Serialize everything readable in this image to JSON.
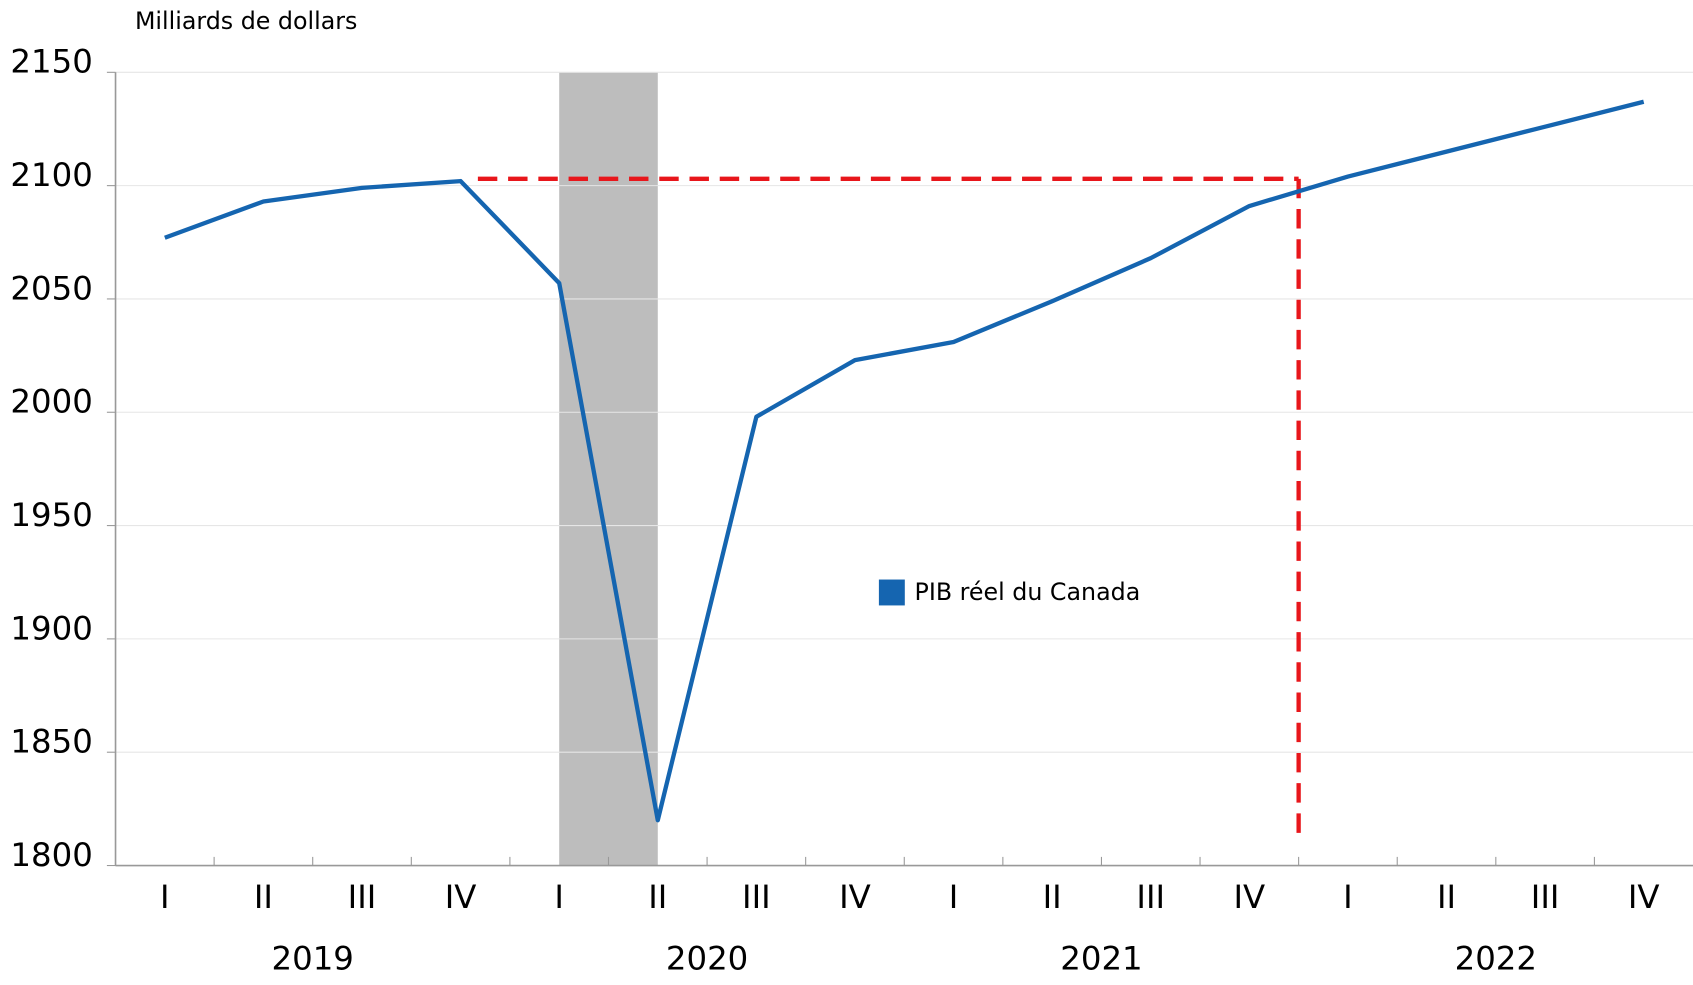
{
  "chart_data": {
    "type": "line",
    "y_axis_label": "Milliards de dollars",
    "categories": [
      "I",
      "II",
      "III",
      "IV",
      "I",
      "II",
      "III",
      "IV",
      "I",
      "II",
      "III",
      "IV",
      "I",
      "II",
      "III",
      "IV"
    ],
    "groups": [
      {
        "label": "2019",
        "span": 4
      },
      {
        "label": "2020",
        "span": 4
      },
      {
        "label": "2021",
        "span": 4
      },
      {
        "label": "2022",
        "span": 4
      }
    ],
    "series": [
      {
        "name": "PIB réel du Canada",
        "color": "#1565b0",
        "values": [
          2077,
          2093,
          2099,
          2102,
          2057,
          1820,
          1998,
          2023,
          2031,
          2049,
          2068,
          2091,
          2104,
          2115,
          2126,
          2137
        ]
      }
    ],
    "ylim": [
      1800,
      2150
    ],
    "yticks": [
      1800,
      1850,
      1900,
      1950,
      2000,
      2050,
      2100,
      2150
    ],
    "grid": true,
    "legend": "center",
    "shaded_span": {
      "start": 4,
      "end": 5,
      "color": "#bdbdbd"
    },
    "reference": {
      "level": 2103,
      "start": 3,
      "end": 11.5,
      "color": "#e8161b"
    }
  }
}
